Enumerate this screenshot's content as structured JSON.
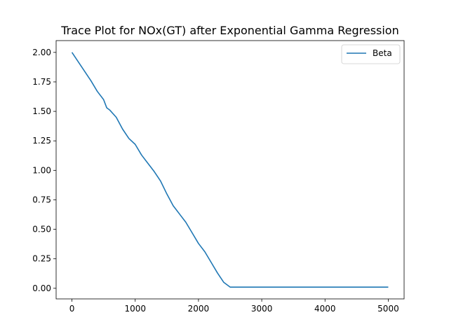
{
  "chart_data": {
    "type": "line",
    "title": "Trace Plot for NOx(GT) after Exponential Gamma Regression",
    "xlabel": "",
    "ylabel": "",
    "xlim": [
      -250,
      5250
    ],
    "ylim": [
      -0.09,
      2.1
    ],
    "x_ticks": [
      0,
      1000,
      2000,
      3000,
      4000,
      5000
    ],
    "x_tick_labels": [
      "0",
      "1000",
      "2000",
      "3000",
      "4000",
      "5000"
    ],
    "y_ticks": [
      0.0,
      0.25,
      0.5,
      0.75,
      1.0,
      1.25,
      1.5,
      1.75,
      2.0
    ],
    "y_tick_labels": [
      "0.00",
      "0.25",
      "0.50",
      "0.75",
      "1.00",
      "1.25",
      "1.50",
      "1.75",
      "2.00"
    ],
    "grid": false,
    "legend": {
      "position": "top-right",
      "entries": [
        "Beta"
      ]
    },
    "series": [
      {
        "name": "Beta",
        "color": "#1f77b4",
        "x": [
          0,
          100,
          200,
          300,
          400,
          500,
          550,
          600,
          700,
          800,
          900,
          1000,
          1100,
          1200,
          1300,
          1400,
          1500,
          1600,
          1700,
          1800,
          1900,
          2000,
          2100,
          2200,
          2300,
          2400,
          2500,
          2520,
          3000,
          4000,
          5000
        ],
        "y": [
          2.0,
          1.92,
          1.84,
          1.76,
          1.67,
          1.6,
          1.53,
          1.51,
          1.45,
          1.35,
          1.27,
          1.22,
          1.13,
          1.06,
          0.99,
          0.91,
          0.8,
          0.7,
          0.63,
          0.56,
          0.47,
          0.38,
          0.31,
          0.22,
          0.13,
          0.05,
          0.01,
          0.01,
          0.01,
          0.01,
          0.01
        ]
      }
    ]
  }
}
